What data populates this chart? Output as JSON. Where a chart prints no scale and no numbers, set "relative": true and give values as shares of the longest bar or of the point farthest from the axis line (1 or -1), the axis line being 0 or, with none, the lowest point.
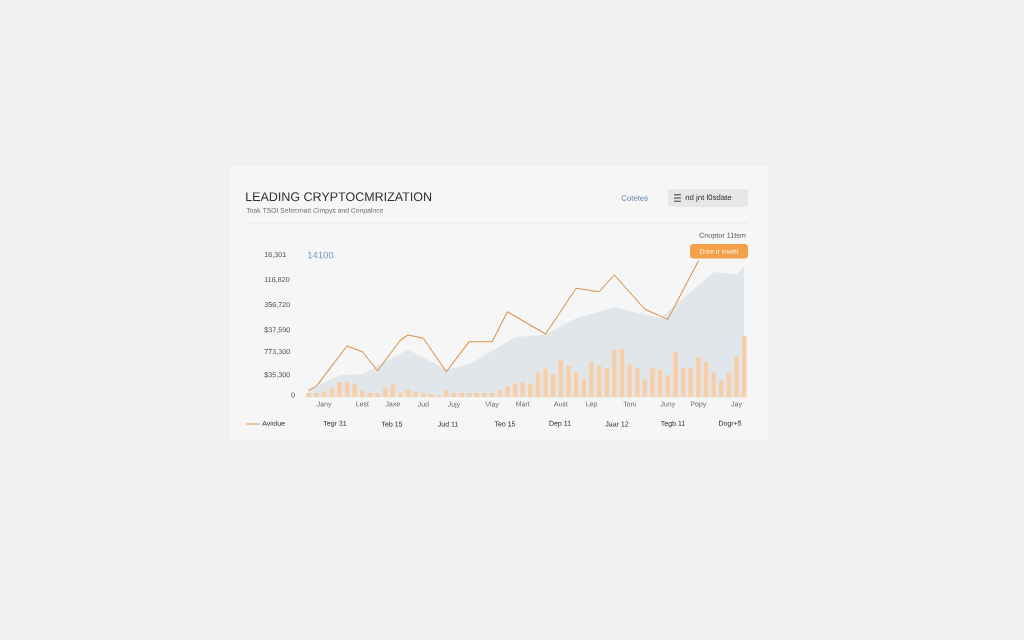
{
  "chart_data": {
    "type": "line",
    "title": "LEADING CRYPTOCMRIZATION",
    "subtitle": "Toak TSOI Sefecrnatt Cimpys and Conpalnce",
    "annotations": [
      "16,301",
      "116,820",
      "356,720",
      "$37,590",
      "773,300",
      "$35,300",
      "0",
      "14100",
      "Tegr 31",
      "Teb 15",
      "Jud 11",
      "Teo 15",
      "Dep 11",
      "Jaar 12",
      "Tegb 11",
      "Dogr+5",
      "Cotetes",
      "nd jnt l0sdate",
      "Cnoptor 11tsm",
      "Dore tr inwelt"
    ],
    "relative": true,
    "categories": [
      null,
      null,
      "Jany",
      null,
      null,
      null,
      null,
      "Lest",
      null,
      null,
      null,
      "Jaxe",
      null,
      null,
      null,
      "Jud",
      null,
      null,
      null,
      "Jujy",
      null,
      null,
      null,
      null,
      "Vlay",
      null,
      null,
      null,
      "Mart",
      null,
      null,
      null,
      null,
      "Aust",
      null,
      null,
      null,
      "Lep",
      null,
      null,
      null,
      null,
      "Toni",
      null,
      null,
      null,
      null,
      "Juny",
      null,
      null,
      null,
      "Popy",
      null,
      null,
      null,
      null,
      "Jay",
      null
    ],
    "legend": "bottom left",
    "marker": "none",
    "line_style": "solid",
    "series": [
      {
        "type": "area",
        "color": "#e1e6ea",
        "values": [
          0.05,
          null,
          null,
          null,
          0.16,
          null,
          null,
          0.17,
          null,
          null,
          null,
          null,
          null,
          0.35,
          null,
          null,
          null,
          null,
          0.2,
          null,
          null,
          0.24,
          null,
          null,
          null,
          null,
          null,
          0.44,
          null,
          null,
          null,
          0.46,
          null,
          null,
          null,
          0.58,
          null,
          null,
          null,
          null,
          0.66,
          null,
          null,
          null,
          null,
          null,
          0.58,
          null,
          null,
          null,
          null,
          null,
          null,
          0.92,
          null,
          null,
          0.9,
          0.96
        ]
      },
      {
        "type": "bar",
        "color": "#f7cea6",
        "values": [
          0.03,
          0.03,
          0.04,
          0.07,
          0.11,
          0.11,
          0.1,
          0.05,
          0.03,
          0.03,
          0.07,
          0.09,
          0.03,
          0.05,
          0.04,
          0.03,
          0.02,
          0.01,
          0.05,
          0.03,
          0.03,
          0.03,
          0.03,
          0.03,
          0.03,
          0.05,
          0.08,
          0.1,
          0.11,
          0.1,
          0.18,
          0.21,
          0.17,
          0.27,
          0.23,
          0.18,
          0.13,
          0.26,
          0.23,
          0.21,
          0.35,
          0.35,
          0.24,
          0.21,
          0.13,
          0.21,
          0.2,
          0.16,
          0.33,
          0.21,
          0.21,
          0.29,
          0.26,
          0.18,
          0.12,
          0.18,
          0.3,
          0.45
        ]
      },
      {
        "name": "Aviolue",
        "color": "#d9924c",
        "values": [
          0.05,
          0.08,
          null,
          null,
          null,
          0.375,
          null,
          0.333,
          null,
          0.193,
          null,
          null,
          0.419,
          0.456,
          null,
          0.432,
          null,
          null,
          0.186,
          null,
          null,
          0.407,
          null,
          null,
          0.407,
          null,
          0.627,
          null,
          null,
          null,
          null,
          0.463,
          null,
          null,
          null,
          0.799,
          null,
          null,
          0.774,
          null,
          0.897,
          null,
          null,
          null,
          0.645,
          null,
          null,
          0.571,
          null,
          null,
          null,
          1.0,
          null,
          null,
          null,
          null,
          null,
          null
        ]
      }
    ]
  }
}
